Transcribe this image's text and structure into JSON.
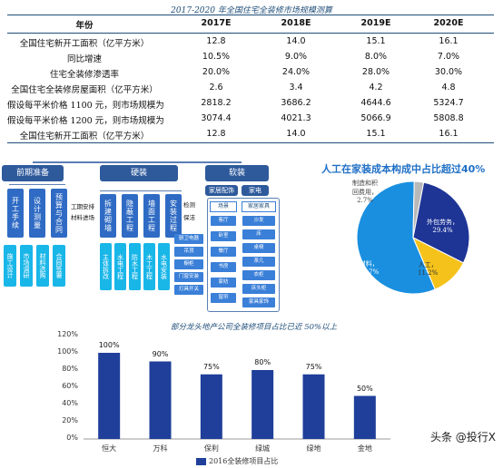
{
  "table": {
    "title": "2017-2020 年全国住宅全装修市场规模测算",
    "header": {
      "label": "年份",
      "years": [
        "2017E",
        "2018E",
        "2019E",
        "2020E"
      ]
    },
    "rows": [
      {
        "label": "全国住宅新开工面积（亿平方米）",
        "values": [
          "12.8",
          "14.0",
          "15.1",
          "16.1"
        ]
      },
      {
        "label": "同比增速",
        "values": [
          "10.5%",
          "9.0%",
          "8.0%",
          "7.0%"
        ]
      },
      {
        "label": "住宅全装修渗透率",
        "values": [
          "20.0%",
          "24.0%",
          "28.0%",
          "30.0%"
        ]
      },
      {
        "label": "全国住宅全装修房屋面积（亿平方米）",
        "values": [
          "2.6",
          "3.4",
          "4.2",
          "4.8"
        ]
      },
      {
        "label": "假设每平米价格 1100 元，则市场规模为",
        "values": [
          "2818.2",
          "3686.2",
          "4644.6",
          "5324.7"
        ]
      },
      {
        "label": "假设每平米价格 1200 元，则市场规模为",
        "values": [
          "3074.4",
          "4021.3",
          "5066.9",
          "5808.8"
        ]
      },
      {
        "label": "全国住宅新开工面积（亿平方米）",
        "values": [
          "12.8",
          "14.0",
          "15.1",
          "16.1"
        ]
      }
    ]
  },
  "diagram": {
    "stage1": "前期准备",
    "stage2": "硬装",
    "stage3": "软装",
    "pre_steps": [
      "开工手续",
      "设计测量",
      "预算与合同"
    ],
    "pre_sub": [
      "施工设计",
      "市场调研",
      "材料选购",
      "合同签署"
    ],
    "hard_side_labels": [
      "工期安排",
      "材料进场"
    ],
    "hard_steps": [
      "拆建砌墙",
      "隐蔽工程",
      "墙面工程",
      "安装过程"
    ],
    "hard_sub": [
      "主体拆改",
      "水电工程",
      "防水工程",
      "木工工程",
      "水电安装"
    ],
    "check_labels": [
      "检测",
      "保洁"
    ],
    "install_items": [
      "厨卫电器",
      "吊顶",
      "橱柜",
      "门窗安装",
      "灯具开关"
    ],
    "soft_tabs": [
      "家居配饰",
      "家电"
    ],
    "soft_col1_header": "场景",
    "soft_col1": [
      "客厅",
      "卧室",
      "餐厅",
      "书房",
      "家纺",
      "窗帘"
    ],
    "soft_col2_header": "家居家具",
    "soft_col2": [
      "沙发",
      "床",
      "桌椅",
      "茶几",
      "衣柜",
      "床头柜",
      "家具家饰"
    ]
  },
  "pie": {
    "title": "人工在家装成本构成中占比超过40%",
    "labels": {
      "manufacturing": "制造和积\n回费用，\n2.7%",
      "outsourcing": "外包劳务，\n29.4%",
      "labor": "人工，\n11.2%",
      "materials": "材料，\n56.7%"
    }
  },
  "chart_data": [
    {
      "type": "pie",
      "title": "人工在家装成本构成中占比超过40%",
      "slices": [
        {
          "name": "材料",
          "value": 56.7,
          "color": "#1a8fe0"
        },
        {
          "name": "制造和回费用",
          "value": 2.7,
          "color": "#b9b9b9"
        },
        {
          "name": "外包劳务",
          "value": 29.4,
          "color": "#1e3596"
        },
        {
          "name": "人工",
          "value": 11.2,
          "color": "#f4c21a"
        }
      ]
    },
    {
      "type": "bar",
      "title": "部分龙头地产公司全装修项目占比已近 50%以上",
      "categories": [
        "恒大",
        "万科",
        "保利",
        "绿城",
        "绿地",
        "金地"
      ],
      "series": [
        {
          "name": "2016全装修项目占比",
          "values": [
            100,
            90,
            75,
            80,
            75,
            50
          ]
        }
      ],
      "value_labels": [
        "100%",
        "90%",
        "75%",
        "80%",
        "75%",
        "50%"
      ],
      "ylim": [
        0,
        120
      ],
      "yticks": [
        "0%",
        "20%",
        "40%",
        "60%",
        "80%",
        "100%",
        "120%"
      ],
      "color": "#1f3f9a",
      "legend_position": "bottom"
    }
  ],
  "watermark": "头条 @投行X"
}
